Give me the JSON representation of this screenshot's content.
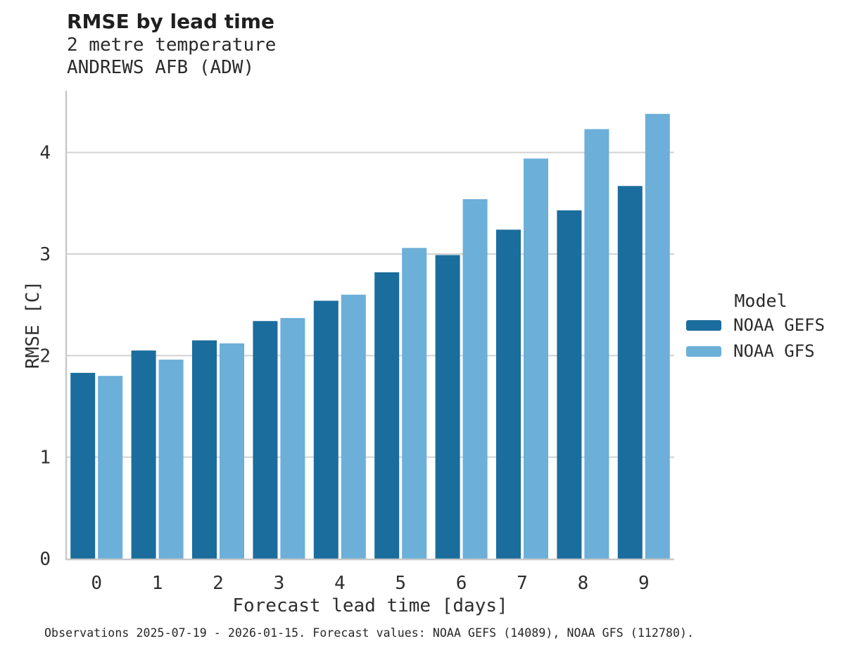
{
  "chart_data": {
    "type": "bar",
    "title": "RMSE by lead time",
    "subtitle": "2 metre temperature",
    "station": "ANDREWS AFB (ADW)",
    "xlabel": "Forecast lead time [days]",
    "ylabel": "RMSE [C]",
    "categories": [
      "0",
      "1",
      "2",
      "3",
      "4",
      "5",
      "6",
      "7",
      "8",
      "9"
    ],
    "series": [
      {
        "name": "NOAA GEFS",
        "color": "#1a6d9d",
        "values": [
          1.83,
          2.05,
          2.15,
          2.34,
          2.54,
          2.82,
          2.99,
          3.24,
          3.43,
          3.67
        ]
      },
      {
        "name": "NOAA GFS",
        "color": "#6cafd8",
        "values": [
          1.8,
          1.96,
          2.12,
          2.37,
          2.6,
          3.06,
          3.54,
          3.94,
          4.23,
          4.38
        ]
      }
    ],
    "ylim": [
      0,
      4.6
    ],
    "yticks": [
      "0",
      "1",
      "2",
      "3",
      "4"
    ],
    "grid": "horizontal",
    "legend_position": "right",
    "legend_title": "Model",
    "caption": "Observations 2025-07-19 - 2026-01-15. Forecast values: NOAA GEFS (14089), NOAA GFS (112780)."
  },
  "colors": {
    "gridline": "#d2d2d2",
    "spine": "#c9c9c9",
    "tick_text": "#2e2e2e"
  }
}
